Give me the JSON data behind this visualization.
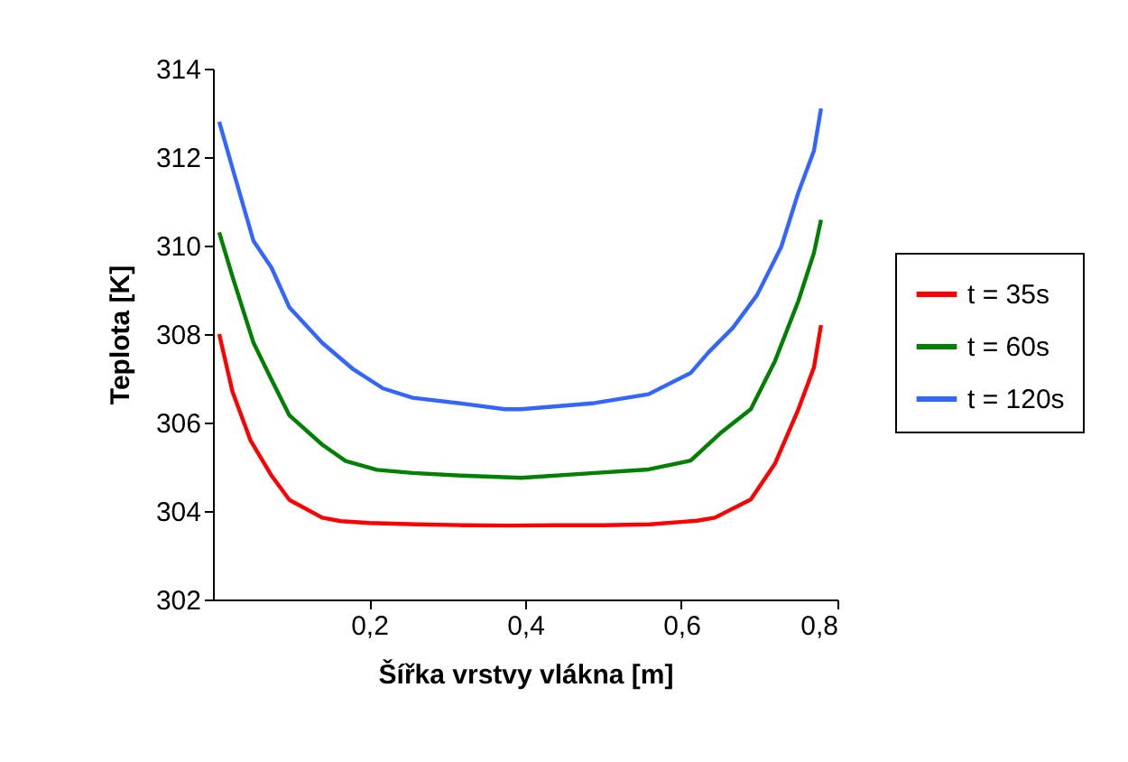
{
  "chart_data": {
    "type": "line",
    "xlabel": "Šířka vrstvy vlákna [m]",
    "ylabel": "Teplota [K]",
    "xlim": [
      0,
      0.8
    ],
    "xticks": [
      {
        "value": 0.2,
        "label": "0,2"
      },
      {
        "value": 0.4,
        "label": "0,4"
      },
      {
        "value": 0.6,
        "label": "0,6"
      },
      {
        "value": 0.8,
        "label": "0,8"
      }
    ],
    "ylim": [
      302,
      314
    ],
    "yticks": [
      302,
      304,
      306,
      308,
      310,
      312,
      314
    ],
    "grid": false,
    "legend": "right",
    "line_style": "solid",
    "marker": "none",
    "series": [
      {
        "name": "t = 35s",
        "color": "#ff0000",
        "x": [
          0.008,
          0.025,
          0.048,
          0.075,
          0.098,
          0.14,
          0.164,
          0.2,
          0.26,
          0.32,
          0.38,
          0.44,
          0.5,
          0.56,
          0.62,
          0.643,
          0.689,
          0.72,
          0.75,
          0.77,
          0.779
        ],
        "values": [
          308.0,
          306.7,
          305.6,
          304.8,
          304.25,
          303.85,
          303.77,
          303.73,
          303.7,
          303.68,
          303.67,
          303.68,
          303.68,
          303.7,
          303.78,
          303.85,
          304.26,
          305.07,
          306.3,
          307.25,
          308.2
        ]
      },
      {
        "name": "t = 60s",
        "color": "#008000",
        "x": [
          0.008,
          0.025,
          0.052,
          0.075,
          0.098,
          0.14,
          0.17,
          0.21,
          0.256,
          0.318,
          0.395,
          0.489,
          0.558,
          0.612,
          0.65,
          0.689,
          0.72,
          0.75,
          0.77,
          0.779
        ],
        "values": [
          310.3,
          309.3,
          307.8,
          306.97,
          306.16,
          305.5,
          305.13,
          304.93,
          304.86,
          304.8,
          304.75,
          304.86,
          304.94,
          305.14,
          305.76,
          306.3,
          307.39,
          308.75,
          309.84,
          310.58
        ]
      },
      {
        "name": "t = 120s",
        "color": "#3366ff",
        "x": [
          0.008,
          0.025,
          0.052,
          0.075,
          0.098,
          0.14,
          0.18,
          0.218,
          0.256,
          0.318,
          0.374,
          0.395,
          0.489,
          0.558,
          0.612,
          0.635,
          0.666,
          0.697,
          0.728,
          0.75,
          0.77,
          0.779
        ],
        "values": [
          312.8,
          311.75,
          310.1,
          309.5,
          308.6,
          307.8,
          307.2,
          306.77,
          306.56,
          306.43,
          306.3,
          306.3,
          306.44,
          306.64,
          307.12,
          307.59,
          308.14,
          308.88,
          309.97,
          311.2,
          312.15,
          313.1
        ]
      }
    ]
  }
}
